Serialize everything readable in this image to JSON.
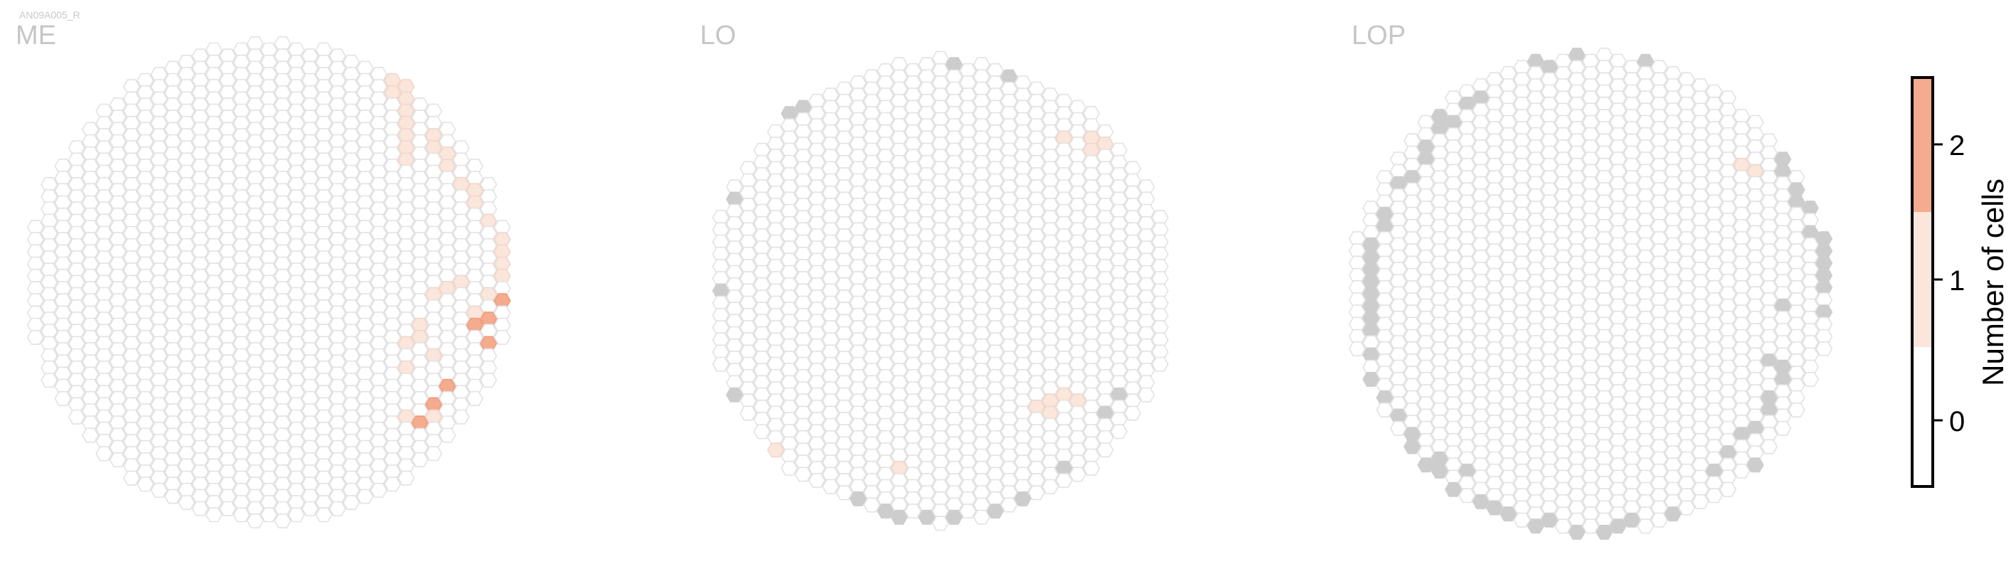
{
  "figure": {
    "superlabel": "AN09A005_R",
    "panels": [
      "ME",
      "LO",
      "LOP"
    ]
  },
  "colorbar": {
    "label": "Number of cells",
    "ticks": [
      "0",
      "1",
      "2"
    ],
    "colors": [
      "#ffffff",
      "#fbe6dc",
      "#f5ab8e"
    ],
    "missing_color": "#cdcdcd",
    "outline_color": "#e2e2e2"
  },
  "chart_data": [
    {
      "type": "heatmap",
      "title": "ME",
      "grid": "hexagonal column map",
      "count_1_cells": 34,
      "count_2_cells": 7,
      "missing_cells": 0
    },
    {
      "type": "heatmap",
      "title": "LO",
      "grid": "hexagonal column map",
      "count_1_cells": 11,
      "count_2_cells": 0,
      "missing_cells": 20
    },
    {
      "type": "heatmap",
      "title": "LOP",
      "grid": "hexagonal column map",
      "count_1_cells": 2,
      "count_2_cells": 0,
      "missing_cells": 70
    }
  ]
}
